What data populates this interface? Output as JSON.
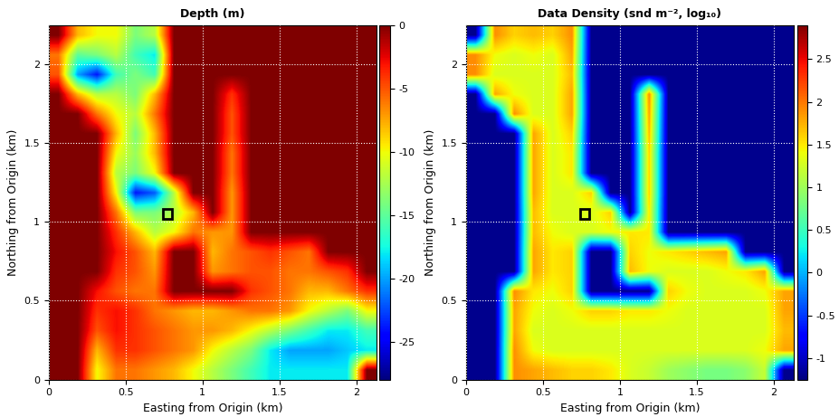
{
  "chart_data": [
    {
      "type": "heatmap",
      "title": "Depth (m)",
      "x_label": "Easting from Origin (km)",
      "y_label": "Northing from Origin (km)",
      "xlim": [
        0,
        2.13
      ],
      "ylim": [
        0,
        2.25
      ],
      "xticks": [
        0,
        0.5,
        1,
        1.5,
        2
      ],
      "yticks": [
        0,
        0.5,
        1,
        1.5,
        2
      ],
      "grid": true,
      "color_range": [
        -28,
        0
      ],
      "color_ticks": [
        0,
        -5,
        -10,
        -15,
        -20,
        -25
      ],
      "box": {
        "x": [
          0.74,
          0.8
        ],
        "y": [
          1.02,
          1.08
        ]
      },
      "cells": [
        [
          0,
          -8,
          -10,
          -10,
          -14,
          -12,
          0,
          0,
          0,
          0,
          0,
          0,
          0,
          0,
          0,
          0,
          0
        ],
        [
          -6,
          -15,
          -14,
          -12,
          -16,
          -18,
          0,
          0,
          0,
          0,
          0,
          0,
          0,
          0,
          0,
          0,
          0
        ],
        [
          -5,
          -20,
          -24,
          -16,
          -14,
          -16,
          0,
          0,
          0,
          0,
          0,
          0,
          0,
          0,
          0,
          0,
          0
        ],
        [
          0,
          -8,
          -12,
          -12,
          -14,
          -8,
          0,
          0,
          0,
          -4,
          0,
          0,
          0,
          0,
          0,
          0,
          0
        ],
        [
          0,
          0,
          -6,
          -10,
          -12,
          -6,
          0,
          0,
          0,
          -5,
          0,
          0,
          0,
          0,
          0,
          0,
          0
        ],
        [
          0,
          0,
          0,
          -8,
          -14,
          -8,
          0,
          0,
          0,
          -5,
          0,
          0,
          0,
          0,
          0,
          0,
          0
        ],
        [
          0,
          0,
          0,
          -10,
          -13,
          -8,
          0,
          0,
          0,
          -6,
          0,
          0,
          0,
          0,
          0,
          0,
          0
        ],
        [
          0,
          0,
          0,
          -12,
          -14,
          -10,
          0,
          0,
          0,
          -6,
          0,
          0,
          0,
          0,
          0,
          0,
          0
        ],
        [
          0,
          0,
          0,
          -10,
          -24,
          -22,
          -12,
          0,
          0,
          -7,
          0,
          0,
          0,
          0,
          0,
          0,
          0
        ],
        [
          0,
          0,
          0,
          -6,
          -14,
          -14,
          -12,
          -8,
          0,
          -7,
          0,
          0,
          0,
          0,
          0,
          0,
          0
        ],
        [
          0,
          0,
          0,
          -4,
          -8,
          -12,
          -10,
          -6,
          -7,
          -7,
          0,
          0,
          0,
          0,
          0,
          0,
          0
        ],
        [
          0,
          0,
          0,
          -3,
          -5,
          -8,
          0,
          0,
          -8,
          -6,
          -5,
          -4,
          -5,
          -6,
          0,
          0,
          0
        ],
        [
          0,
          0,
          0,
          -4,
          -5,
          -7,
          0,
          0,
          -7,
          -6,
          -5,
          -5,
          -6,
          -6,
          -5,
          -4,
          0
        ],
        [
          0,
          0,
          -3,
          -5,
          -6,
          -6,
          0,
          0,
          0,
          0,
          -4,
          -5,
          -6,
          -8,
          -8,
          -6,
          -4
        ],
        [
          0,
          0,
          -4,
          -3,
          -4,
          -6,
          -7,
          -8,
          -8,
          -7,
          -6,
          -6,
          -7,
          -10,
          -12,
          -14,
          -10
        ],
        [
          0,
          0,
          -5,
          -3,
          -4,
          -5,
          -6,
          -7,
          -7,
          -8,
          -10,
          -12,
          -14,
          -16,
          -18,
          -18,
          -16
        ],
        [
          0,
          0,
          -8,
          -4,
          -4,
          -5,
          -6,
          -7,
          -10,
          -12,
          -14,
          -18,
          -20,
          -20,
          -20,
          -19,
          -18
        ],
        [
          0,
          0,
          -10,
          -6,
          -6,
          -7,
          -8,
          -10,
          -12,
          -14,
          -16,
          -18,
          -18,
          -18,
          -18,
          -18,
          0
        ]
      ]
    },
    {
      "type": "heatmap",
      "title": "Data Density (snd m⁻², log₁₀)",
      "x_label": "Easting from Origin (km)",
      "y_label": "Northing from Origin (km)",
      "xlim": [
        0,
        2.13
      ],
      "ylim": [
        0,
        2.25
      ],
      "xticks": [
        0,
        0.5,
        1,
        1.5,
        2
      ],
      "yticks": [
        0,
        0.5,
        1,
        1.5,
        2
      ],
      "grid": true,
      "color_range": [
        -1.25,
        2.9
      ],
      "color_ticks": [
        -1,
        -0.5,
        0,
        0.5,
        1,
        1.5,
        2,
        2.5
      ],
      "box": {
        "x": [
          0.74,
          0.8
        ],
        "y": [
          1.02,
          1.08
        ]
      },
      "cells": [
        [
          -1.2,
          1.9,
          1.6,
          1.7,
          1.6,
          1.9,
          -1.2,
          -1.2,
          -1.2,
          -1.2,
          -1.2,
          -1.2,
          -1.2,
          -1.2,
          -1.2,
          -1.2,
          -1.2
        ],
        [
          1.9,
          1.4,
          1.3,
          1.4,
          1.3,
          1.8,
          -1.2,
          -1.2,
          -1.2,
          -1.2,
          -1.2,
          -1.2,
          -1.2,
          -1.2,
          -1.2,
          -1.2,
          -1.2
        ],
        [
          1.9,
          1.3,
          1.3,
          1.3,
          1.3,
          1.7,
          -1.2,
          -1.2,
          -1.2,
          -1.2,
          -1.2,
          -1.2,
          -1.2,
          -1.2,
          -1.2,
          -1.2,
          -1.2
        ],
        [
          -1.2,
          1.8,
          1.4,
          1.3,
          1.3,
          1.8,
          -1.2,
          -1.2,
          -1.2,
          1.9,
          -1.2,
          -1.2,
          -1.2,
          -1.2,
          -1.2,
          -1.2,
          -1.2
        ],
        [
          -1.2,
          -1.2,
          1.9,
          1.3,
          1.3,
          1.8,
          -1.2,
          -1.2,
          -1.2,
          1.8,
          -1.2,
          -1.2,
          -1.2,
          -1.2,
          -1.2,
          -1.2,
          -1.2
        ],
        [
          -1.2,
          -1.2,
          -1.2,
          1.8,
          1.3,
          1.6,
          -1.2,
          -1.2,
          -1.2,
          1.7,
          -1.2,
          -1.2,
          -1.2,
          -1.2,
          -1.2,
          -1.2,
          -1.2
        ],
        [
          -1.2,
          -1.2,
          -1.2,
          1.8,
          1.3,
          1.5,
          -1.2,
          -1.2,
          -1.2,
          1.6,
          -1.2,
          -1.2,
          -1.2,
          -1.2,
          -1.2,
          -1.2,
          -1.2
        ],
        [
          -1.2,
          -1.2,
          -1.2,
          1.8,
          1.3,
          1.5,
          -1.2,
          -1.2,
          -1.2,
          1.6,
          -1.2,
          -1.2,
          -1.2,
          -1.2,
          -1.2,
          -1.2,
          -1.2
        ],
        [
          -1.2,
          -1.2,
          -1.2,
          1.8,
          1.3,
          1.3,
          1.6,
          -1.2,
          -1.2,
          1.6,
          -1.2,
          -1.2,
          -1.2,
          -1.2,
          -1.2,
          -1.2,
          -1.2
        ],
        [
          -1.2,
          -1.2,
          -1.2,
          1.7,
          1.3,
          1.3,
          1.3,
          1.6,
          -1.2,
          1.5,
          -1.2,
          -1.2,
          -1.2,
          -1.2,
          -1.2,
          -1.2,
          -1.2
        ],
        [
          -1.2,
          -1.2,
          -1.2,
          1.7,
          1.4,
          1.3,
          1.3,
          1.4,
          1.5,
          1.5,
          -1.2,
          -1.2,
          -1.2,
          -1.2,
          -1.2,
          -1.2,
          -1.2
        ],
        [
          -1.2,
          -1.2,
          -1.2,
          1.8,
          1.5,
          1.6,
          -1.2,
          -1.2,
          1.6,
          1.4,
          1.5,
          1.6,
          1.7,
          1.8,
          -1.2,
          -1.2,
          -1.2
        ],
        [
          -1.2,
          -1.2,
          -1.2,
          1.8,
          1.5,
          1.6,
          -1.2,
          -1.2,
          1.7,
          1.4,
          1.3,
          1.3,
          1.3,
          1.4,
          1.5,
          1.8,
          -1.2
        ],
        [
          -1.2,
          -1.2,
          1.9,
          1.5,
          1.4,
          1.6,
          -1.2,
          -1.2,
          -1.2,
          -1.2,
          1.6,
          1.4,
          1.3,
          1.3,
          1.3,
          1.4,
          1.8
        ],
        [
          -1.2,
          -1.2,
          1.8,
          1.4,
          1.3,
          1.4,
          1.6,
          1.6,
          1.5,
          1.5,
          1.4,
          1.3,
          1.3,
          1.3,
          1.3,
          1.3,
          1.8
        ],
        [
          -1.2,
          -1.2,
          1.8,
          1.3,
          1.3,
          1.3,
          1.3,
          1.3,
          1.3,
          1.3,
          1.3,
          1.3,
          1.3,
          1.3,
          1.3,
          1.3,
          1.7
        ],
        [
          -1.2,
          -1.2,
          1.9,
          1.4,
          1.3,
          1.3,
          1.3,
          1.3,
          1.3,
          1.3,
          1.3,
          1.3,
          1.3,
          1.3,
          1.3,
          1.4,
          1.8
        ],
        [
          -1.2,
          -1.2,
          1.9,
          1.8,
          1.7,
          1.6,
          1.6,
          1.5,
          1.3,
          1.2,
          1.0,
          0.9,
          0.8,
          0.8,
          0.9,
          1.2,
          -1.2
        ]
      ]
    }
  ]
}
